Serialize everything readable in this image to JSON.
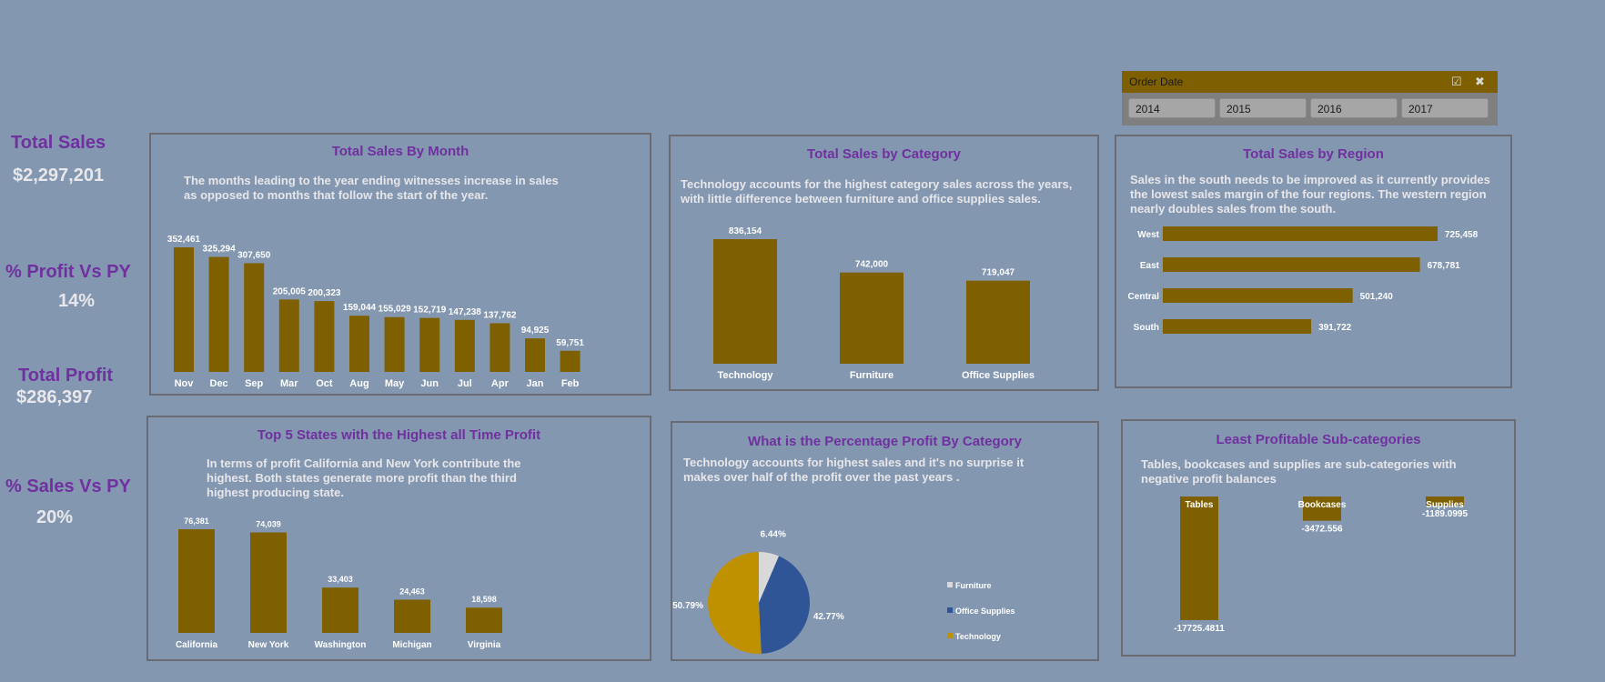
{
  "kpis": {
    "total_sales_label": "Total Sales",
    "total_sales_value": "$2,297,201",
    "profit_vs_py_label": "% Profit Vs PY",
    "profit_vs_py_value": "14%",
    "total_profit_label": "Total Profit",
    "total_profit_value": "$286,397",
    "sales_vs_py_label": "% Sales Vs PY",
    "sales_vs_py_value": "20%"
  },
  "slicer": {
    "title": "Order Date",
    "icons": [
      "multi-select-icon",
      "clear-filter-icon"
    ],
    "options": [
      "2014",
      "2015",
      "2016",
      "2017"
    ]
  },
  "colors": {
    "background": "#8497b0",
    "bar": "#7f6000",
    "title": "#7030a0",
    "pie_furniture": "#d9d9d9",
    "pie_office_supplies": "#2f5597",
    "pie_technology": "#bf9000"
  },
  "chart_data": [
    {
      "type": "bar",
      "title": "Total Sales By Month",
      "description": "The months leading to the year ending witnesses increase in sales as opposed to months that follow the start of the year.",
      "categories": [
        "Nov",
        "Dec",
        "Sep",
        "Mar",
        "Oct",
        "Aug",
        "May",
        "Jun",
        "Jul",
        "Apr",
        "Jan",
        "Feb"
      ],
      "values": [
        352461,
        325294,
        307650,
        205005,
        200323,
        159044,
        155029,
        152719,
        147238,
        137762,
        94925,
        59751
      ],
      "labels": [
        "352,461",
        "325,294",
        "307,650",
        "205,005",
        "200,323",
        "159,044",
        "155,029",
        "152,719",
        "147,238",
        "137,762",
        "94,925",
        "59,751"
      ],
      "ylim": [
        0,
        352461
      ]
    },
    {
      "type": "bar",
      "title": "Total Sales by Category",
      "description": "Technology accounts for the highest category sales across the years, with little difference between furniture and office supplies sales.",
      "categories": [
        "Technology",
        "Furniture",
        "Office Supplies"
      ],
      "values": [
        836154,
        742000,
        719047
      ],
      "labels": [
        "836,154",
        "742,000",
        "719,047"
      ],
      "ylim": [
        600000,
        836154
      ]
    },
    {
      "type": "bar",
      "orientation": "horizontal",
      "title": "Total Sales by Region",
      "description": "Sales in the south needs to be improved as it currently provides the lowest sales margin of the four regions. The western region nearly doubles sales from the south.",
      "categories": [
        "West",
        "East",
        "Central",
        "South"
      ],
      "values": [
        725458,
        678781,
        501240,
        391722
      ],
      "labels": [
        "725,458",
        "678,781",
        "501,240",
        "391,722"
      ],
      "xlim": [
        0,
        725458
      ]
    },
    {
      "type": "bar",
      "title": "Top 5 States with the Highest all Time Profit",
      "description": "In terms of profit California and New York contribute the highest. Both states generate more profit than the third highest producing state.",
      "categories": [
        "California",
        "New York",
        "Washington",
        "Michigan",
        "Virginia"
      ],
      "values": [
        76381,
        74039,
        33403,
        24463,
        18598
      ],
      "labels": [
        "76,381",
        "74,039",
        "33,403",
        "24,463",
        "18,598"
      ],
      "ylim": [
        0,
        76381
      ]
    },
    {
      "type": "pie",
      "title": "What is the Percentage Profit By Category",
      "description": "Technology accounts for highest sales and it's no surprise it makes over half of the profit over the past years .",
      "categories": [
        "Furniture",
        "Office Supplies",
        "Technology"
      ],
      "values": [
        6.44,
        42.77,
        50.79
      ],
      "labels": [
        "6.44%",
        "42.77%",
        "50.79%"
      ],
      "legend_placement": "right"
    },
    {
      "type": "bar",
      "title": "Least Profitable Sub-categories",
      "description": "Tables, bookcases and supplies are sub-categories with negative profit balances",
      "categories": [
        "Tables",
        "Bookcases",
        "Supplies"
      ],
      "values": [
        -17725.4811,
        -3472.556,
        -1189.0995
      ],
      "labels": [
        "-17725.4811",
        "-3472.556",
        "-1189.0995"
      ],
      "ylim": [
        -17725.4811,
        0
      ]
    }
  ]
}
